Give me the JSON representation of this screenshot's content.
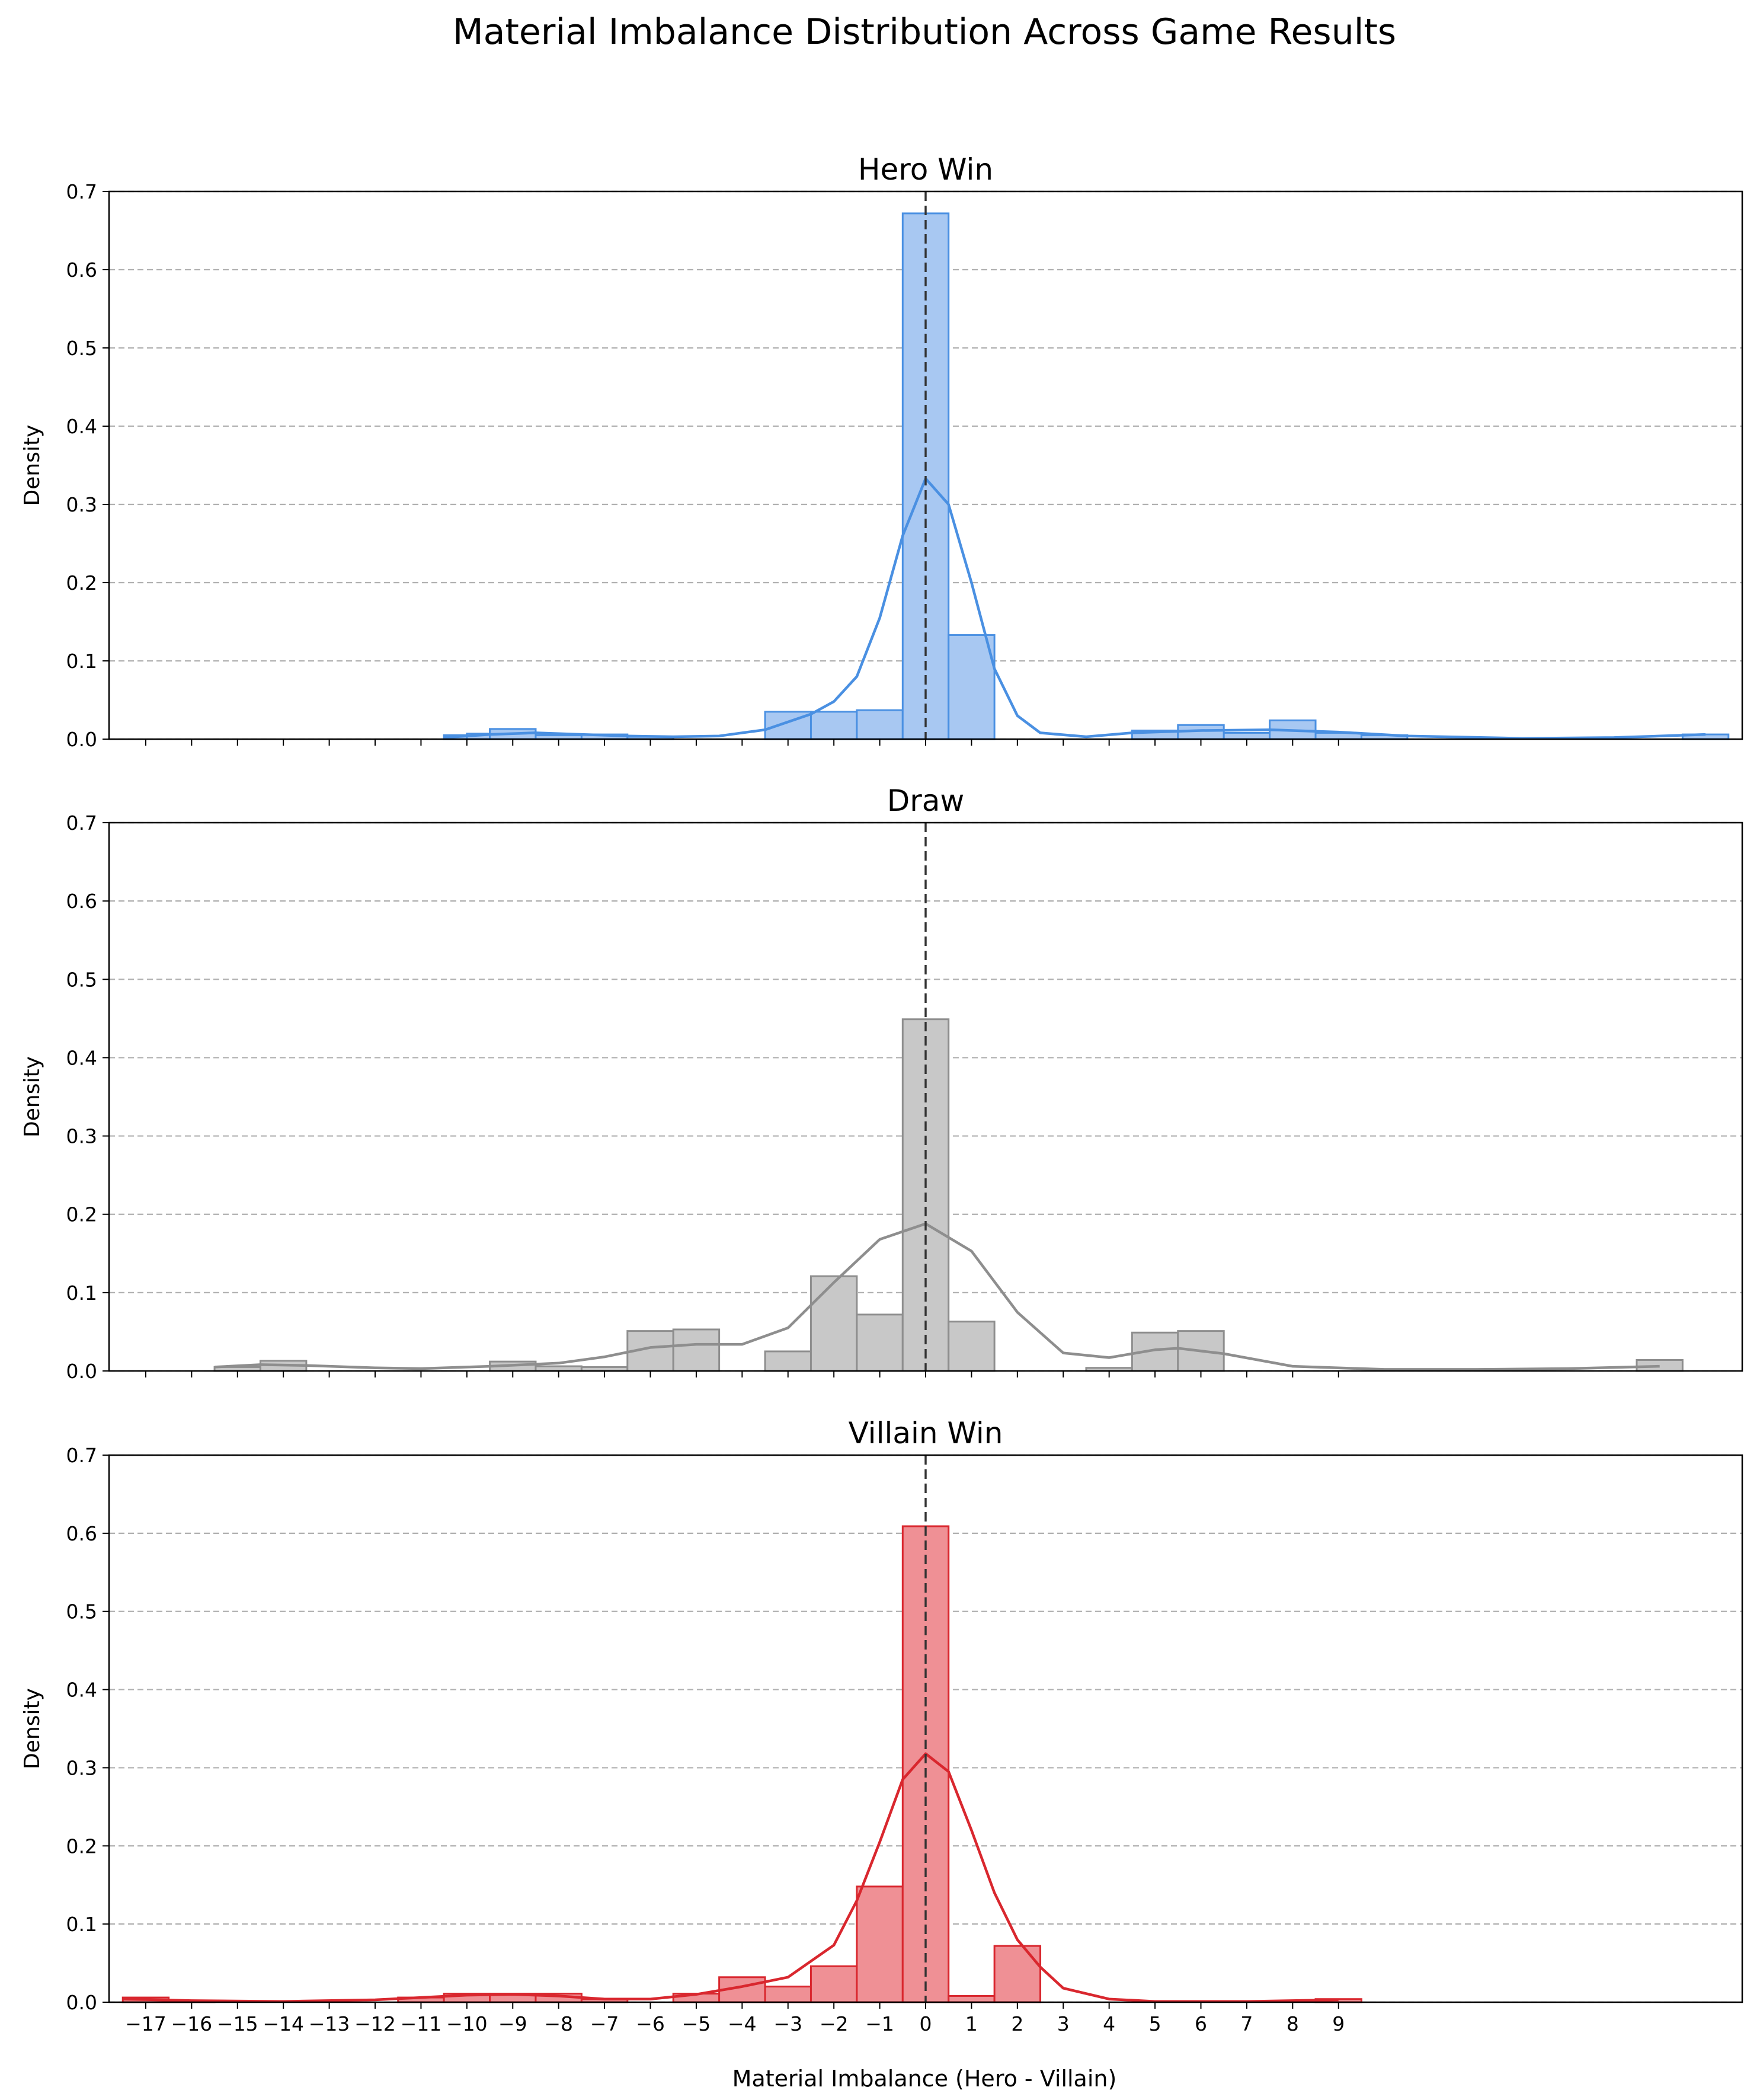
{
  "figure": {
    "title": "Material Imbalance Distribution Across Game Results",
    "xlabel": "Material Imbalance (Hero - Villain)",
    "ylabel": "Density"
  },
  "chart_data": [
    {
      "type": "bar",
      "title": "Hero Win",
      "color": "#4a90e2",
      "fill": "#a8c8f2",
      "xlim": [
        -17.8,
        17.8
      ],
      "ylim": [
        0,
        0.7
      ],
      "yticks": [
        "0.0",
        "0.1",
        "0.2",
        "0.3",
        "0.4",
        "0.5",
        "0.6",
        "0.7"
      ],
      "xticks": [
        "−17",
        "−16",
        "−15",
        "−14",
        "−13",
        "−12",
        "−11",
        "−10",
        "−9",
        "−8",
        "−7",
        "−6",
        "−5",
        "−4",
        "−3",
        "−2",
        "−1",
        "0",
        "1",
        "2",
        "3",
        "4",
        "5",
        "6",
        "7",
        "8",
        "9"
      ],
      "grid": "y-dashed",
      "reference_line_x": 0,
      "bins": [
        [
          -10.5,
          -10.0,
          0.005
        ],
        [
          -10.0,
          -9.5,
          0.007
        ],
        [
          -9.5,
          -8.5,
          0.013
        ],
        [
          -8.5,
          -7.5,
          0.005
        ],
        [
          -7.5,
          -6.5,
          0.006
        ],
        [
          -6.5,
          -5.5,
          0.003
        ],
        [
          -3.5,
          -2.5,
          0.035
        ],
        [
          -2.5,
          -1.5,
          0.035
        ],
        [
          -1.5,
          -0.5,
          0.037
        ],
        [
          -0.5,
          0.5,
          0.672
        ],
        [
          0.5,
          1.5,
          0.133
        ],
        [
          4.5,
          5.5,
          0.011
        ],
        [
          5.5,
          6.5,
          0.018
        ],
        [
          6.5,
          7.5,
          0.008
        ],
        [
          7.5,
          8.5,
          0.024
        ],
        [
          8.5,
          9.5,
          0.008
        ],
        [
          9.5,
          10.5,
          0.005
        ],
        [
          16.5,
          17.5,
          0.006
        ]
      ],
      "kde": [
        [
          -10.5,
          0.002
        ],
        [
          -9.5,
          0.006
        ],
        [
          -8.5,
          0.008
        ],
        [
          -7.5,
          0.006
        ],
        [
          -6.5,
          0.004
        ],
        [
          -5.5,
          0.003
        ],
        [
          -4.5,
          0.004
        ],
        [
          -3.5,
          0.012
        ],
        [
          -2.5,
          0.032
        ],
        [
          -2,
          0.048
        ],
        [
          -1.5,
          0.08
        ],
        [
          -1,
          0.155
        ],
        [
          -0.5,
          0.26
        ],
        [
          0,
          0.333
        ],
        [
          0.5,
          0.3
        ],
        [
          1,
          0.2
        ],
        [
          1.5,
          0.09
        ],
        [
          2,
          0.03
        ],
        [
          2.5,
          0.008
        ],
        [
          3.5,
          0.003
        ],
        [
          4.5,
          0.008
        ],
        [
          6,
          0.011
        ],
        [
          7.5,
          0.012
        ],
        [
          9,
          0.009
        ],
        [
          10.5,
          0.004
        ],
        [
          13,
          0.001
        ],
        [
          15,
          0.002
        ],
        [
          17,
          0.006
        ]
      ]
    },
    {
      "type": "bar",
      "title": "Draw",
      "color": "#8e8e8e",
      "fill": "#c8c8c8",
      "xlim": [
        -17.8,
        17.8
      ],
      "ylim": [
        0,
        0.7
      ],
      "yticks": [
        "0.0",
        "0.1",
        "0.2",
        "0.3",
        "0.4",
        "0.5",
        "0.6",
        "0.7"
      ],
      "grid": "y-dashed",
      "reference_line_x": 0,
      "bins": [
        [
          -15.5,
          -14.5,
          0.005
        ],
        [
          -14.5,
          -13.5,
          0.013
        ],
        [
          -9.5,
          -8.5,
          0.012
        ],
        [
          -8.5,
          -7.5,
          0.006
        ],
        [
          -7.5,
          -6.5,
          0.005
        ],
        [
          -6.5,
          -5.5,
          0.051
        ],
        [
          -5.5,
          -4.5,
          0.053
        ],
        [
          -3.5,
          -2.5,
          0.025
        ],
        [
          -2.5,
          -1.5,
          0.121
        ],
        [
          -1.5,
          -0.5,
          0.072
        ],
        [
          -0.5,
          0.5,
          0.449
        ],
        [
          0.5,
          1.5,
          0.063
        ],
        [
          3.5,
          4.5,
          0.004
        ],
        [
          4.5,
          5.5,
          0.049
        ],
        [
          5.5,
          6.5,
          0.051
        ],
        [
          15.5,
          16.5,
          0.014
        ]
      ],
      "kde": [
        [
          -15.5,
          0.005
        ],
        [
          -14.5,
          0.008
        ],
        [
          -13.5,
          0.007
        ],
        [
          -12,
          0.004
        ],
        [
          -11,
          0.003
        ],
        [
          -9.5,
          0.006
        ],
        [
          -8,
          0.01
        ],
        [
          -7,
          0.018
        ],
        [
          -6,
          0.03
        ],
        [
          -5,
          0.034
        ],
        [
          -4,
          0.034
        ],
        [
          -3,
          0.055
        ],
        [
          -2,
          0.113
        ],
        [
          -1,
          0.168
        ],
        [
          0,
          0.188
        ],
        [
          1,
          0.153
        ],
        [
          2,
          0.075
        ],
        [
          3,
          0.023
        ],
        [
          4,
          0.017
        ],
        [
          5,
          0.027
        ],
        [
          5.5,
          0.029
        ],
        [
          6.5,
          0.022
        ],
        [
          8,
          0.006
        ],
        [
          10,
          0.002
        ],
        [
          12,
          0.002
        ],
        [
          14,
          0.003
        ],
        [
          16,
          0.006
        ]
      ]
    },
    {
      "type": "bar",
      "title": "Villain Win",
      "color": "#d9272e",
      "fill": "#ef9095",
      "xlim": [
        -17.8,
        17.8
      ],
      "ylim": [
        0,
        0.7
      ],
      "yticks": [
        "0.0",
        "0.1",
        "0.2",
        "0.3",
        "0.4",
        "0.5",
        "0.6",
        "0.7"
      ],
      "xticks": [
        "−17",
        "−16",
        "−15",
        "−14",
        "−13",
        "−12",
        "−11",
        "−10",
        "−9",
        "−8",
        "−7",
        "−6",
        "−5",
        "−4",
        "−3",
        "−2",
        "−1",
        "0",
        "1",
        "2",
        "3",
        "4",
        "5",
        "6",
        "7",
        "8",
        "9"
      ],
      "grid": "y-dashed",
      "reference_line_x": 0,
      "bins": [
        [
          -17.5,
          -16.5,
          0.006
        ],
        [
          -16.5,
          -15.5,
          0.002
        ],
        [
          -11.5,
          -10.5,
          0.006
        ],
        [
          -10.5,
          -9.5,
          0.011
        ],
        [
          -9.5,
          -8.5,
          0.011
        ],
        [
          -8.5,
          -7.5,
          0.011
        ],
        [
          -7.5,
          -6.5,
          0.004
        ],
        [
          -5.5,
          -4.5,
          0.011
        ],
        [
          -4.5,
          -3.5,
          0.032
        ],
        [
          -3.5,
          -2.5,
          0.02
        ],
        [
          -2.5,
          -1.5,
          0.046
        ],
        [
          -1.5,
          -0.5,
          0.148
        ],
        [
          -0.5,
          0.5,
          0.609
        ],
        [
          0.5,
          1.5,
          0.008
        ],
        [
          1.5,
          2.5,
          0.072
        ],
        [
          8.5,
          9.5,
          0.004
        ]
      ],
      "kde": [
        [
          -17.5,
          0.004
        ],
        [
          -16,
          0.002
        ],
        [
          -14,
          0.001
        ],
        [
          -12,
          0.003
        ],
        [
          -11,
          0.006
        ],
        [
          -10,
          0.009
        ],
        [
          -9,
          0.01
        ],
        [
          -8,
          0.008
        ],
        [
          -7,
          0.004
        ],
        [
          -6,
          0.004
        ],
        [
          -5,
          0.01
        ],
        [
          -4,
          0.02
        ],
        [
          -3,
          0.032
        ],
        [
          -2,
          0.073
        ],
        [
          -1.5,
          0.13
        ],
        [
          -1,
          0.205
        ],
        [
          -0.5,
          0.285
        ],
        [
          0,
          0.318
        ],
        [
          0.5,
          0.295
        ],
        [
          1,
          0.22
        ],
        [
          1.5,
          0.14
        ],
        [
          2,
          0.08
        ],
        [
          2.5,
          0.045
        ],
        [
          3,
          0.018
        ],
        [
          4,
          0.004
        ],
        [
          5,
          0.001
        ],
        [
          7,
          0.001
        ],
        [
          9,
          0.003
        ]
      ]
    }
  ]
}
